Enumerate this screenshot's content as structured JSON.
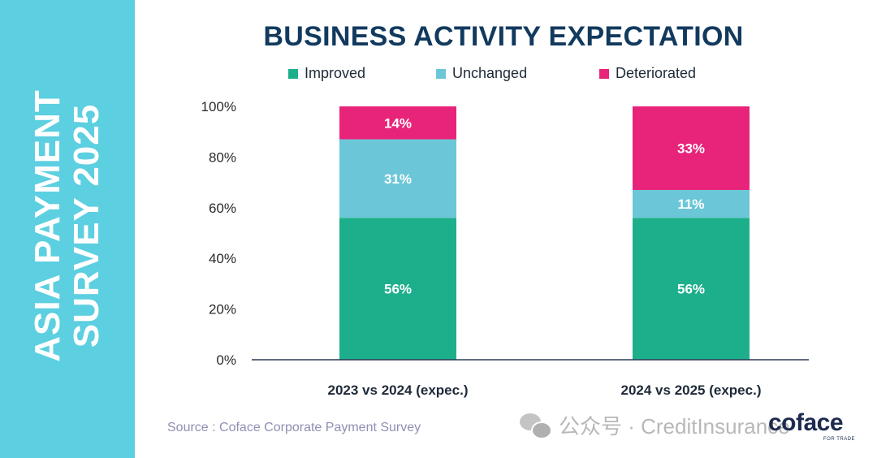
{
  "sidebar": {
    "line1": "ASIA PAYMENT",
    "line2": "SURVEY 2025"
  },
  "chart_data": {
    "type": "bar",
    "stacked": true,
    "title": "BUSINESS ACTIVITY EXPECTATION",
    "categories": [
      "2023 vs 2024 (expec.)",
      "2024 vs 2025 (expec.)"
    ],
    "series": [
      {
        "name": "Improved",
        "values": [
          56,
          56
        ],
        "labels": [
          "56%",
          "56%"
        ],
        "color": "#1daf8b"
      },
      {
        "name": "Unchanged",
        "values": [
          31,
          11
        ],
        "labels": [
          "31%",
          "11%"
        ],
        "color": "#6bc7d7"
      },
      {
        "name": "Deteriorated",
        "values": [
          14,
          33
        ],
        "labels": [
          "14%",
          "33%"
        ],
        "color": "#e8237a"
      }
    ],
    "yticks": [
      "0%",
      "20%",
      "40%",
      "60%",
      "80%",
      "100%"
    ],
    "ylim": [
      0,
      100
    ],
    "legend_position": "top",
    "grid": false
  },
  "source": "Source : Coface Corporate Payment Survey",
  "watermark": "公众号 · CreditInsurance",
  "logo": {
    "name": "coface",
    "tagline": "FOR TRADE"
  }
}
